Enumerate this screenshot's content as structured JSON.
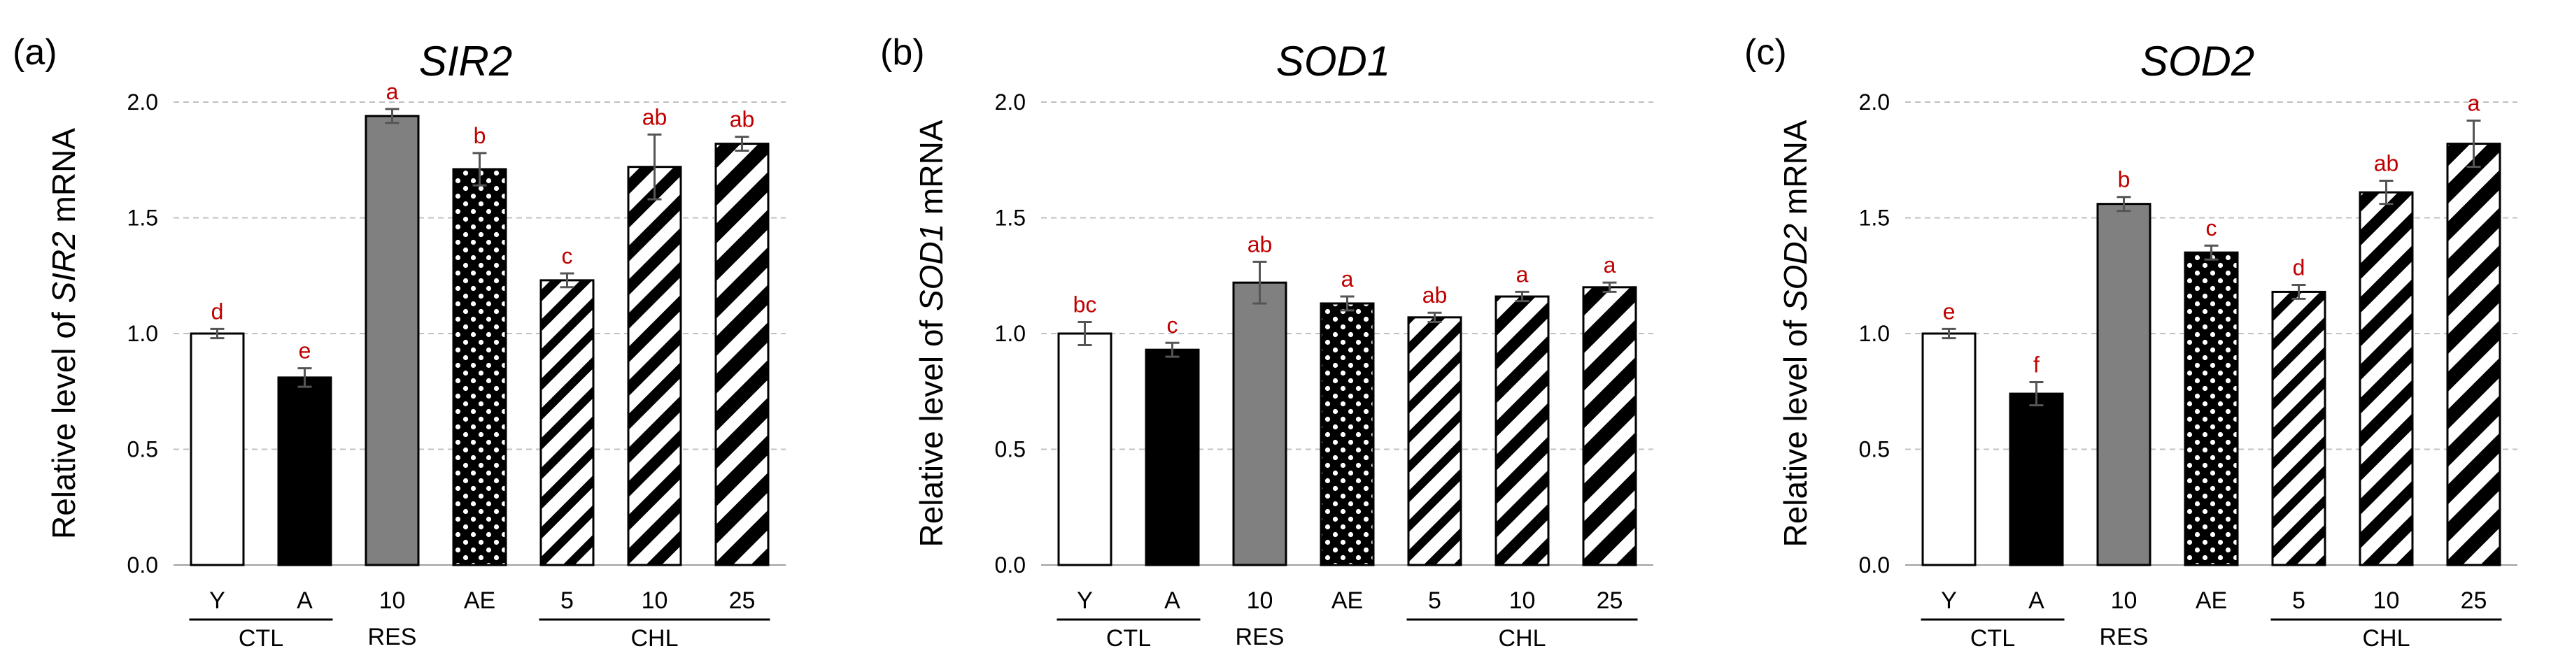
{
  "chart_data": [
    {
      "type": "bar",
      "panel_label": "(a)",
      "title": "SIR2",
      "ylabel_prefix": "Relative level of ",
      "ylabel_gene": "SIR2",
      "ylabel_suffix": " mRNA",
      "ylim": [
        0,
        2.0
      ],
      "yticks": [
        "0.0",
        "0.5",
        "1.0",
        "1.5",
        "2.0"
      ],
      "grid": true,
      "categories": [
        "Y",
        "A",
        "10",
        "AE",
        "5",
        "10",
        "25"
      ],
      "groups": [
        {
          "label": "CTL",
          "members": [
            0,
            1
          ],
          "underline": true
        },
        {
          "label": "RES",
          "members": [
            2
          ],
          "underline": false
        },
        {
          "label": "CHL",
          "members": [
            4,
            5,
            6
          ],
          "underline": true
        }
      ],
      "values": [
        1.0,
        0.81,
        1.94,
        1.71,
        1.23,
        1.72,
        1.82
      ],
      "errors": [
        0.02,
        0.04,
        0.03,
        0.07,
        0.03,
        0.14,
        0.03
      ],
      "significance": [
        "d",
        "e",
        "a",
        "b",
        "c",
        "ab",
        "ab"
      ],
      "styles": [
        "white",
        "black",
        "gray",
        "dots",
        "stripe-thin",
        "stripe-medium",
        "stripe-thick"
      ]
    },
    {
      "type": "bar",
      "panel_label": "(b)",
      "title": "SOD1",
      "ylabel_prefix": "Relative level of ",
      "ylabel_gene": "SOD1",
      "ylabel_suffix": " mRNA",
      "ylim": [
        0,
        2.0
      ],
      "yticks": [
        "0.0",
        "0.5",
        "1.0",
        "1.5",
        "2.0"
      ],
      "grid": true,
      "categories": [
        "Y",
        "A",
        "10",
        "AE",
        "5",
        "10",
        "25"
      ],
      "groups": [
        {
          "label": "CTL",
          "members": [
            0,
            1
          ],
          "underline": true
        },
        {
          "label": "RES",
          "members": [
            2
          ],
          "underline": false
        },
        {
          "label": "CHL",
          "members": [
            4,
            5,
            6
          ],
          "underline": true
        }
      ],
      "values": [
        1.0,
        0.93,
        1.22,
        1.13,
        1.07,
        1.16,
        1.2
      ],
      "errors": [
        0.05,
        0.03,
        0.09,
        0.03,
        0.02,
        0.02,
        0.02
      ],
      "significance": [
        "bc",
        "c",
        "ab",
        "a",
        "ab",
        "a",
        "a"
      ],
      "styles": [
        "white",
        "black",
        "gray",
        "dots",
        "stripe-thin",
        "stripe-medium",
        "stripe-thick"
      ]
    },
    {
      "type": "bar",
      "panel_label": "(c)",
      "title": "SOD2",
      "ylabel_prefix": "Relative level of ",
      "ylabel_gene": "SOD2",
      "ylabel_suffix": " mRNA",
      "ylim": [
        0,
        2.0
      ],
      "yticks": [
        "0.0",
        "0.5",
        "1.0",
        "1.5",
        "2.0"
      ],
      "grid": true,
      "categories": [
        "Y",
        "A",
        "10",
        "AE",
        "5",
        "10",
        "25"
      ],
      "groups": [
        {
          "label": "CTL",
          "members": [
            0,
            1
          ],
          "underline": true
        },
        {
          "label": "RES",
          "members": [
            2
          ],
          "underline": false
        },
        {
          "label": "CHL",
          "members": [
            4,
            5,
            6
          ],
          "underline": true
        }
      ],
      "values": [
        1.0,
        0.74,
        1.56,
        1.35,
        1.18,
        1.61,
        1.82
      ],
      "errors": [
        0.02,
        0.05,
        0.03,
        0.03,
        0.03,
        0.05,
        0.1
      ],
      "significance": [
        "e",
        "f",
        "b",
        "c",
        "d",
        "ab",
        "a"
      ],
      "styles": [
        "white",
        "black",
        "gray",
        "dots",
        "stripe-thin",
        "stripe-medium",
        "stripe-thick"
      ]
    }
  ],
  "colors": {
    "bar_gray": "#808080",
    "bar_black": "#000000",
    "bar_white": "#ffffff",
    "significance": "#c00000",
    "error_bar": "#555555",
    "grid": "#c0c0c0"
  }
}
